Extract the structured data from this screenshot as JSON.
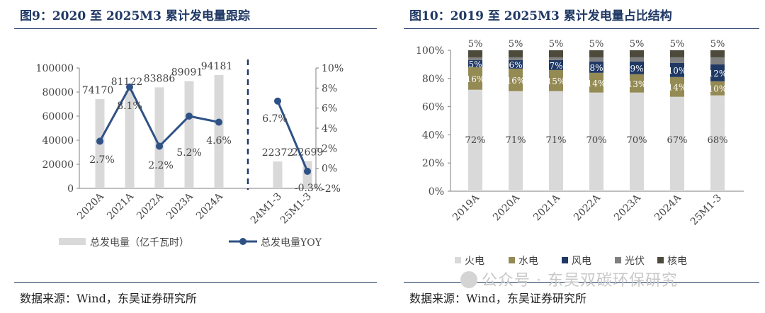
{
  "left": {
    "title": "图9：2020 至 2025M3 累计发电量跟踪",
    "source": "数据来源：Wind，东吴证券研究所"
  },
  "right": {
    "title": "图10：2019 至 2025M3 累计发电量占比结构",
    "source": "数据来源：Wind，东吴证券研究所"
  },
  "watermark": "公众号 · 东吴双碳环保研究",
  "chart_data": [
    {
      "type": "bar",
      "categories": [
        "2020A",
        "2021A",
        "2022A",
        "2023A",
        "2024A",
        "24M1-3",
        "25M1-3"
      ],
      "series": [
        {
          "name": "总发电量（亿千瓦时）",
          "type": "bar",
          "axis": "left",
          "values": [
            74170,
            81122,
            83886,
            89091,
            94181,
            22372,
            22699
          ],
          "labels": [
            "74170",
            "81122",
            "83886",
            "89091",
            "94181",
            "22372",
            "22699"
          ]
        },
        {
          "name": "总发电量YOY",
          "type": "line",
          "axis": "right",
          "values": [
            2.7,
            8.1,
            2.2,
            5.2,
            4.6,
            6.7,
            -0.3
          ],
          "labels": [
            "2.7%",
            "8.1%",
            "2.2%",
            "5.2%",
            "4.6%",
            "6.7%",
            "-0.3%"
          ]
        }
      ],
      "y_left": {
        "min": 0,
        "max": 100000,
        "ticks": [
          "0",
          "20000",
          "40000",
          "60000",
          "80000",
          "100000"
        ]
      },
      "y_right": {
        "min": -2,
        "max": 10,
        "ticks": [
          "-2%",
          "0%",
          "2%",
          "4%",
          "6%",
          "8%",
          "10%"
        ]
      },
      "grid": false,
      "legend_position": "bottom",
      "colors": {
        "bar": "#d9d9d9",
        "line": "#2e5186",
        "divider": "#1f3864"
      }
    },
    {
      "type": "bar",
      "stacked": true,
      "categories": [
        "2019A",
        "2020A",
        "2021A",
        "2022A",
        "2023A",
        "2024A",
        "25M1-3"
      ],
      "series": [
        {
          "name": "火电",
          "color": "#d9d9d9",
          "values": [
            72,
            71,
            71,
            70,
            70,
            67,
            68
          ],
          "labels": [
            "72%",
            "71%",
            "71%",
            "70%",
            "70%",
            "67%",
            "68%"
          ]
        },
        {
          "name": "水电",
          "color": "#948a54",
          "values": [
            16,
            16,
            15,
            14,
            13,
            14,
            10
          ],
          "labels": [
            "16%",
            "16%",
            "15%",
            "14%",
            "13%",
            "14%",
            "10%"
          ]
        },
        {
          "name": "风电",
          "color": "#1f3864",
          "values": [
            5,
            6,
            7,
            8,
            9,
            10,
            12
          ],
          "labels": [
            "5%",
            "6%",
            "7%",
            "8%",
            "9%",
            "10%",
            "12%"
          ]
        },
        {
          "name": "光伏",
          "color": "#7f7f7f",
          "values": [
            2,
            2,
            2,
            3,
            3,
            4,
            5
          ]
        },
        {
          "name": "核电",
          "color": "#4d4a3c",
          "values": [
            5,
            5,
            5,
            5,
            5,
            5,
            5
          ],
          "labels": [
            "5%",
            "5%",
            "5%",
            "5%",
            "5%",
            "5%",
            "5%"
          ]
        }
      ],
      "y": {
        "min": 0,
        "max": 100,
        "ticks": [
          "0%",
          "20%",
          "40%",
          "60%",
          "80%",
          "100%"
        ]
      },
      "grid": false,
      "legend_position": "bottom"
    }
  ]
}
